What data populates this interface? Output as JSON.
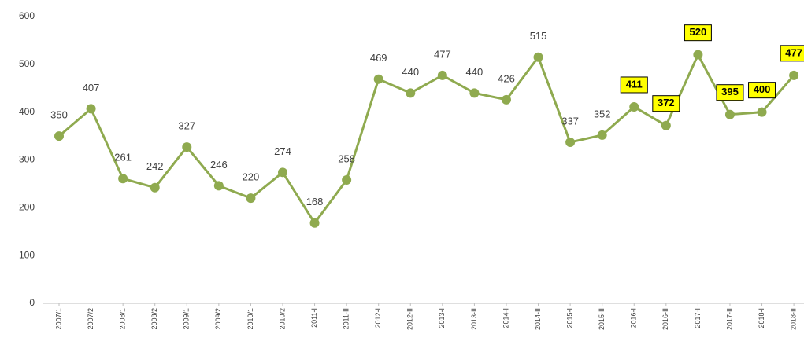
{
  "chart_data": {
    "type": "line",
    "categories": [
      "2007/1",
      "2007/2",
      "2008/1",
      "2008/2",
      "2009/1",
      "2009/2",
      "2010/1",
      "2010/2",
      "2011-I",
      "2011-II",
      "2012-I",
      "2012-II",
      "2013-I",
      "2013-II",
      "2014-I",
      "2014-II",
      "2015-I",
      "2015-II",
      "2016-I",
      "2016-II",
      "2017-I",
      "2017-II",
      "2018-I",
      "2018-II"
    ],
    "values": [
      350,
      407,
      261,
      242,
      327,
      246,
      220,
      274,
      168,
      258,
      469,
      440,
      477,
      440,
      426,
      515,
      337,
      352,
      411,
      372,
      520,
      395,
      400,
      477
    ],
    "color": "#8faa4f",
    "highlight": [
      18,
      19,
      20,
      21,
      22,
      23
    ],
    "highlight_color": "#ffff00",
    "ylim": [
      0,
      600
    ],
    "yticks": [
      0,
      100,
      200,
      300,
      400,
      500,
      600
    ],
    "grid": false
  }
}
